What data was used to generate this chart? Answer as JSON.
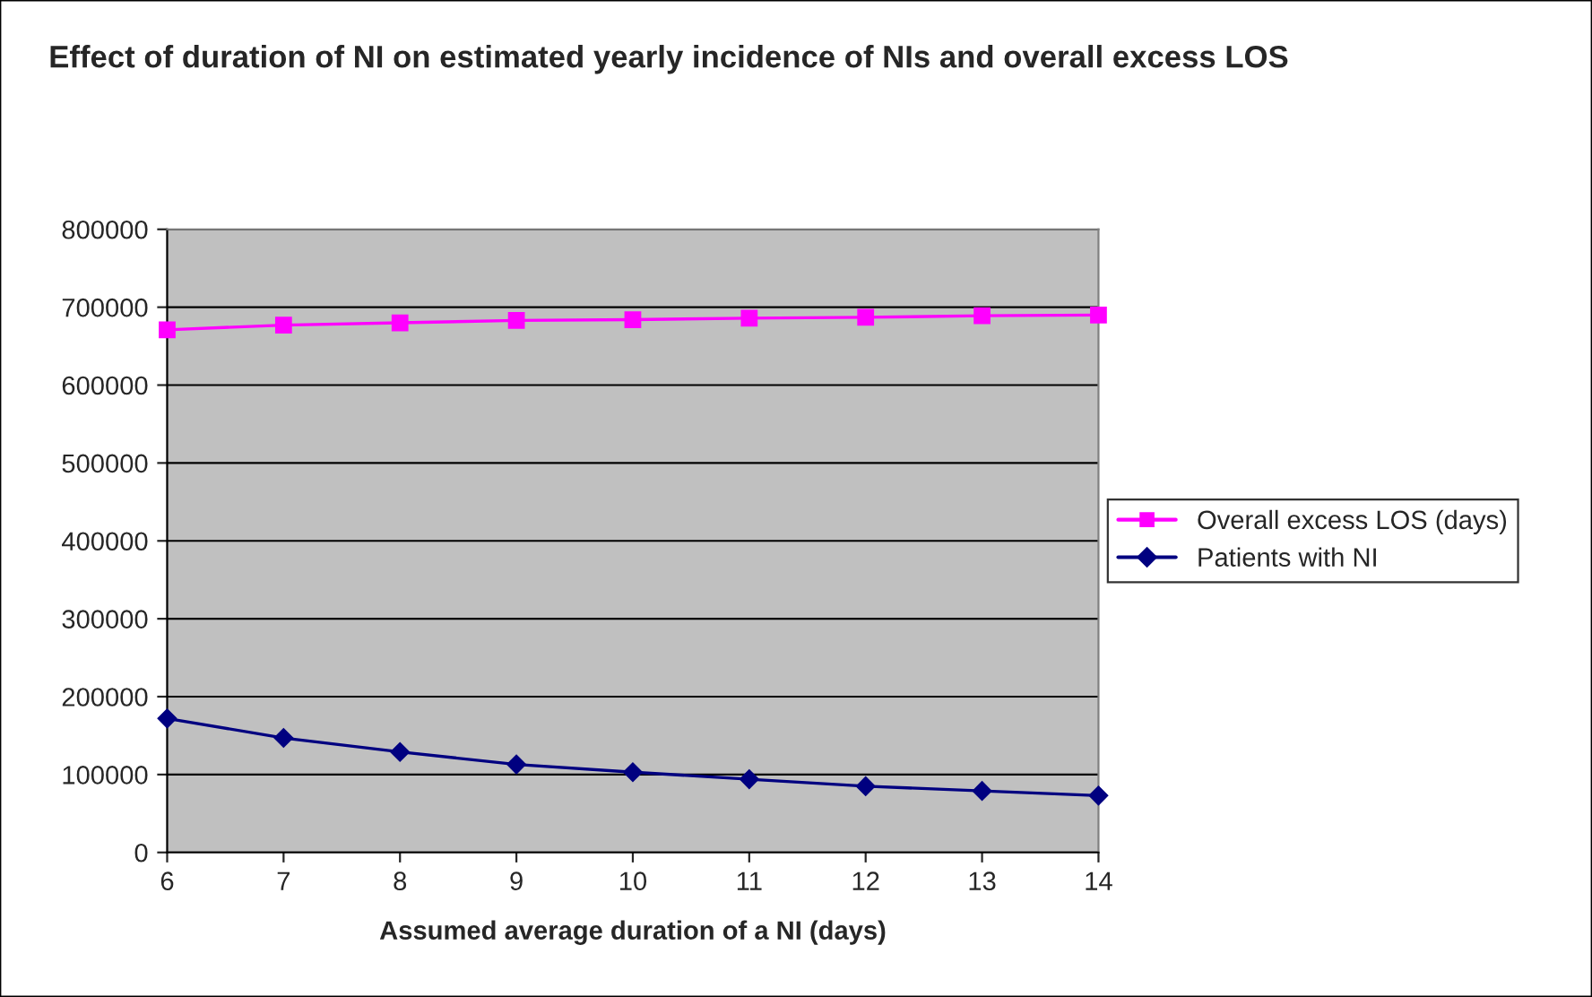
{
  "chart_data": {
    "type": "line",
    "title": "Effect of duration of NI on estimated yearly incidence of NIs and overall excess LOS",
    "xlabel": "Assumed average duration of a NI (days)",
    "x": [
      6,
      7,
      8,
      9,
      10,
      11,
      12,
      13,
      14
    ],
    "series": [
      {
        "name": "Overall excess LOS (days)",
        "color": "#ff00ff",
        "marker": "square",
        "values": [
          671000,
          677000,
          680000,
          683000,
          684000,
          686000,
          687000,
          689000,
          690000
        ]
      },
      {
        "name": "Patients with NI",
        "color": "#000080",
        "marker": "diamond",
        "values": [
          172000,
          147000,
          129000,
          113000,
          103000,
          94000,
          85000,
          79000,
          73000
        ]
      }
    ],
    "xlim": [
      6,
      14
    ],
    "xticks": [
      6,
      7,
      8,
      9,
      10,
      11,
      12,
      13,
      14
    ],
    "ylim": [
      0,
      800000
    ],
    "yticks": [
      0,
      100000,
      200000,
      300000,
      400000,
      500000,
      600000,
      700000,
      800000
    ],
    "grid": "y",
    "legend": "right",
    "line_style": "solid"
  }
}
